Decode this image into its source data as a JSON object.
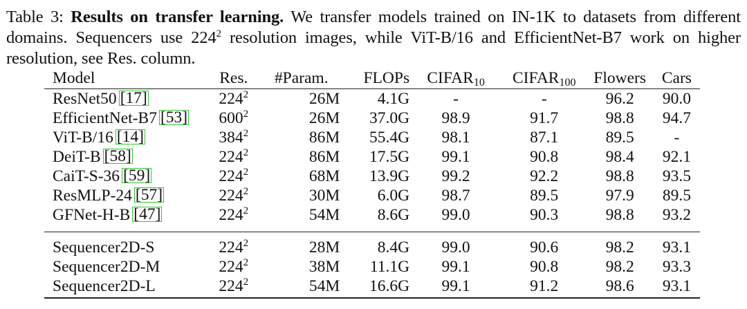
{
  "caption": {
    "label": "Table 3:",
    "bold_title": "Results on transfer learning.",
    "text": "We transfer models trained on IN-1K to datasets from different domains. Sequencers use 224",
    "text_sup": "2",
    "text_rest": "resolution images, while ViT-B/16 and EfficientNet-B7 work on higher resolution, see Res. column."
  },
  "table": {
    "headers": {
      "model": "Model",
      "res": "Res.",
      "param": "#Param.",
      "flops": "FLOPs",
      "cifar10_base": "CIFAR",
      "cifar10_sub": "10",
      "cifar100_base": "CIFAR",
      "cifar100_sub": "100",
      "flowers": "Flowers",
      "cars": "Cars"
    },
    "group1": [
      {
        "model": "ResNet50",
        "ref": "17",
        "res_base": "224",
        "res_sup": "2",
        "param": "26M",
        "flops": "4.1G",
        "cifar10": "-",
        "cifar100": "-",
        "flowers": "96.2",
        "cars": "90.0"
      },
      {
        "model": "EfficientNet-B7",
        "ref": "53",
        "res_base": "600",
        "res_sup": "2",
        "param": "26M",
        "flops": "37.0G",
        "cifar10": "98.9",
        "cifar100": "91.7",
        "flowers": "98.8",
        "cars": "94.7"
      },
      {
        "model": "ViT-B/16",
        "ref": "14",
        "res_base": "384",
        "res_sup": "2",
        "param": "86M",
        "flops": "55.4G",
        "cifar10": "98.1",
        "cifar100": "87.1",
        "flowers": "89.5",
        "cars": "-"
      },
      {
        "model": "DeiT-B",
        "ref": "58",
        "res_base": "224",
        "res_sup": "2",
        "param": "86M",
        "flops": "17.5G",
        "cifar10": "99.1",
        "cifar100": "90.8",
        "flowers": "98.4",
        "cars": "92.1"
      },
      {
        "model": "CaiT-S-36",
        "ref": "59",
        "res_base": "224",
        "res_sup": "2",
        "param": "68M",
        "flops": "13.9G",
        "cifar10": "99.2",
        "cifar100": "92.2",
        "flowers": "98.8",
        "cars": "93.5"
      },
      {
        "model": "ResMLP-24",
        "ref": "57",
        "res_base": "224",
        "res_sup": "2",
        "param": "30M",
        "flops": "6.0G",
        "cifar10": "98.7",
        "cifar100": "89.5",
        "flowers": "97.9",
        "cars": "89.5"
      },
      {
        "model": "GFNet-H-B",
        "ref": "47",
        "res_base": "224",
        "res_sup": "2",
        "param": "54M",
        "flops": "8.6G",
        "cifar10": "99.0",
        "cifar100": "90.3",
        "flowers": "98.8",
        "cars": "93.2"
      }
    ],
    "group2": [
      {
        "model": "Sequencer2D-S",
        "res_base": "224",
        "res_sup": "2",
        "param": "28M",
        "flops": "8.4G",
        "cifar10": "99.0",
        "cifar100": "90.6",
        "flowers": "98.2",
        "cars": "93.1"
      },
      {
        "model": "Sequencer2D-M",
        "res_base": "224",
        "res_sup": "2",
        "param": "38M",
        "flops": "11.1G",
        "cifar10": "99.1",
        "cifar100": "90.8",
        "flowers": "98.2",
        "cars": "93.3"
      },
      {
        "model": "Sequencer2D-L",
        "res_base": "224",
        "res_sup": "2",
        "param": "54M",
        "flops": "16.6G",
        "cifar10": "99.1",
        "cifar100": "91.2",
        "flowers": "98.6",
        "cars": "93.1"
      }
    ]
  }
}
